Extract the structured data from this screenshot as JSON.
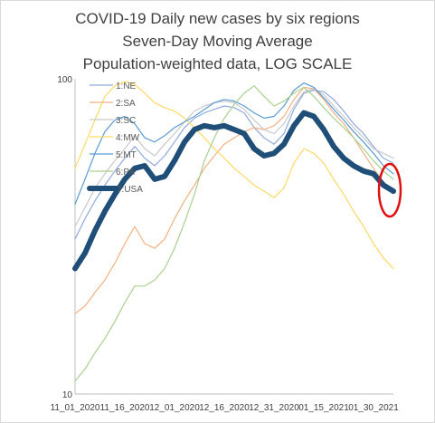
{
  "chart_data": {
    "type": "line",
    "title": "COVID-19 Daily new cases by six regions",
    "subtitle_lines": [
      "Seven-Day Moving Average",
      "Population-weighted data, LOG SCALE"
    ],
    "y_scale": "log",
    "ylim": [
      10,
      100
    ],
    "y_ticks": [
      "100",
      "10"
    ],
    "x_ticks": [
      "11_01_2020",
      "11_16_2020",
      "12_01_2020",
      "12_16_2020",
      "12_31_2020",
      "01_15_2021",
      "01_30_2021"
    ],
    "x_tick_days": [
      0,
      15,
      30,
      45,
      60,
      75,
      90
    ],
    "x_days": [
      0,
      3,
      6,
      9,
      12,
      15,
      18,
      21,
      24,
      27,
      30,
      33,
      36,
      39,
      42,
      45,
      48,
      51,
      54,
      57,
      60,
      63,
      66,
      69,
      72,
      75,
      78,
      81,
      84,
      87,
      90,
      93,
      96
    ],
    "grid": false,
    "legend_position": "top-left",
    "annotation": "red ellipse around latest values",
    "series": [
      {
        "name": "1:NE",
        "color": "#8faadc",
        "width": 1.2,
        "values": [
          31,
          36,
          41,
          46,
          51,
          56,
          61,
          56,
          53,
          57,
          63,
          70,
          75,
          78,
          80,
          82,
          81,
          78,
          70,
          65,
          62,
          67,
          80,
          90,
          92,
          91,
          86,
          79,
          72,
          67,
          61,
          56,
          54
        ]
      },
      {
        "name": "2:SA",
        "color": "#f4b183",
        "width": 1.2,
        "values": [
          18,
          19,
          21,
          23,
          26,
          30,
          34,
          30,
          29,
          31,
          36,
          41,
          46,
          52,
          57,
          62,
          65,
          68,
          70,
          69,
          71,
          76,
          86,
          94,
          93,
          86,
          78,
          72,
          65,
          58,
          52,
          47,
          44
        ]
      },
      {
        "name": "3:SC",
        "color": "#c9c9c9",
        "width": 1.2,
        "values": [
          34,
          39,
          45,
          50,
          55,
          60,
          66,
          60,
          57,
          62,
          67,
          73,
          79,
          82,
          84,
          85,
          84,
          80,
          74,
          69,
          67,
          72,
          82,
          91,
          93,
          89,
          82,
          76,
          70,
          65,
          60,
          58,
          56
        ]
      },
      {
        "name": "4:MW",
        "color": "#ffd966",
        "width": 1.2,
        "values": [
          52,
          62,
          74,
          88,
          95,
          98,
          96,
          90,
          84,
          81,
          79,
          75,
          70,
          65,
          60,
          56,
          52,
          49,
          46,
          44,
          42,
          45,
          54,
          60,
          58,
          54,
          48,
          43,
          38,
          34,
          30,
          27,
          25
        ]
      },
      {
        "name": "5:MT",
        "color": "#5b9bd5",
        "width": 1.2,
        "values": [
          40,
          48,
          58,
          68,
          74,
          76,
          72,
          65,
          63,
          66,
          70,
          73,
          76,
          80,
          84,
          86,
          85,
          82,
          78,
          75,
          76,
          82,
          92,
          97,
          94,
          87,
          80,
          74,
          68,
          63,
          58,
          53,
          50
        ]
      },
      {
        "name": "6:PA",
        "color": "#a9d18e",
        "width": 1.2,
        "values": [
          11,
          12,
          13.5,
          15,
          17,
          19.5,
          22,
          22,
          23,
          25,
          29,
          35,
          43,
          55,
          65,
          75,
          83,
          90,
          95,
          88,
          82,
          85,
          90,
          94,
          88,
          81,
          75,
          70,
          65,
          60,
          55,
          51,
          48
        ]
      },
      {
        "name": "7:USA",
        "color": "#1f4e79",
        "width": 6,
        "values": [
          25,
          28,
          33,
          38,
          43,
          48,
          52,
          53,
          48,
          49,
          55,
          63,
          69,
          71,
          70,
          71,
          69,
          67,
          60,
          57,
          58,
          62,
          71,
          78,
          76,
          69,
          61,
          56,
          53,
          51,
          50,
          46,
          44
        ]
      }
    ]
  }
}
